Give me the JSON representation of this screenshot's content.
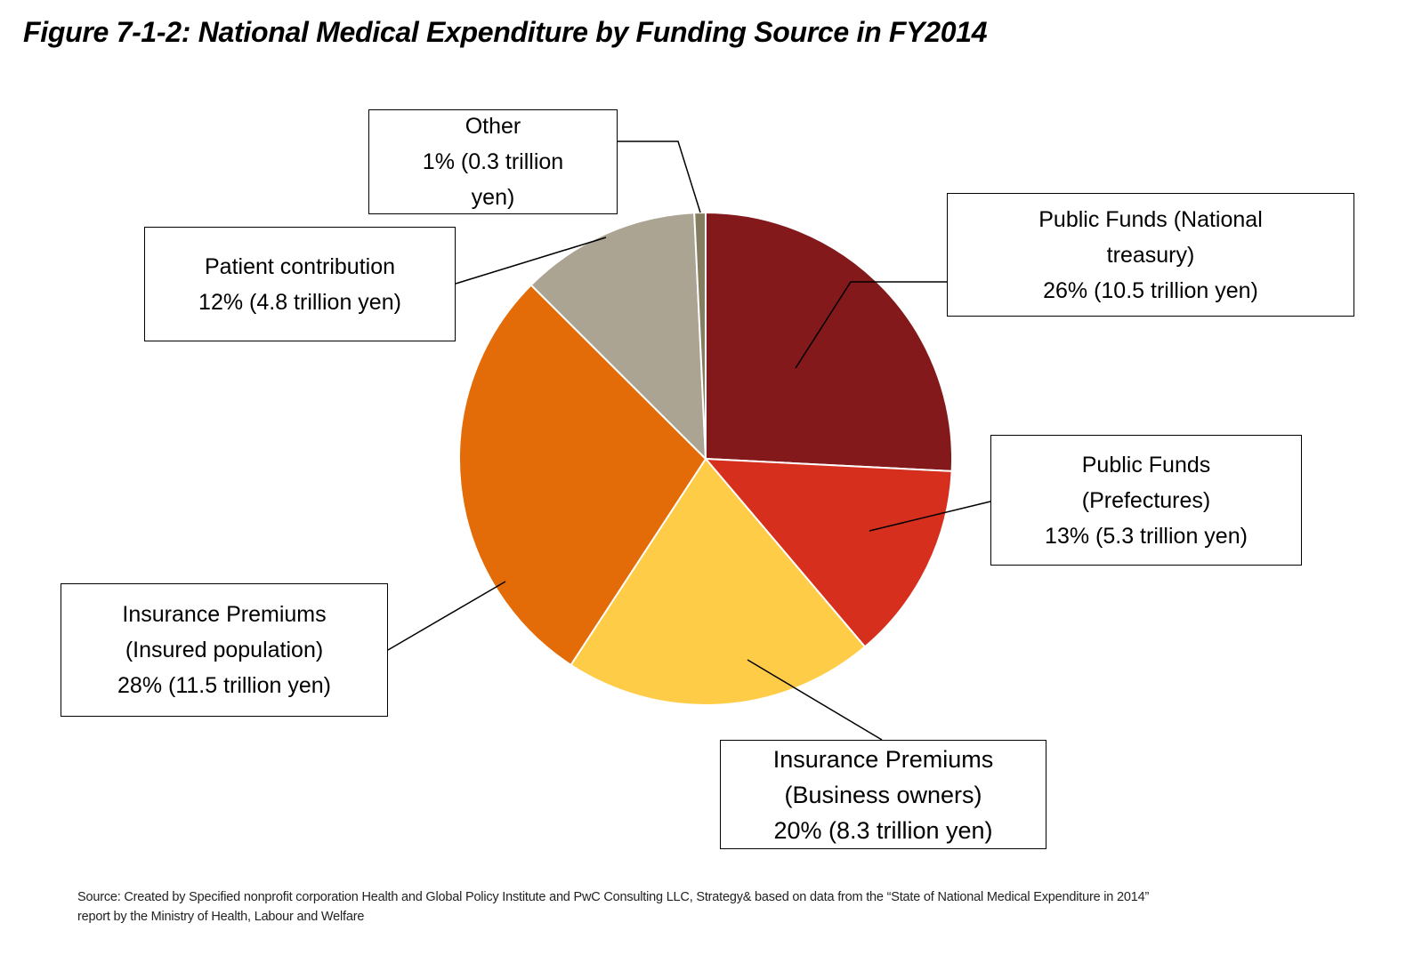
{
  "chart_data": {
    "type": "pie",
    "title": "Figure 7-1-2: National Medical Expenditure by Funding Source in FY2014",
    "unit": "trillion yen",
    "slices": [
      {
        "name": "Public Funds (National treasury)",
        "percent": 26,
        "value": 10.5,
        "color": "#83191B",
        "lines": [
          "Public Funds (National",
          "treasury)",
          "26% (10.5 trillion yen)"
        ]
      },
      {
        "name": "Public Funds (Prefectures)",
        "percent": 13,
        "value": 5.3,
        "color": "#D62F1E",
        "lines": [
          "Public Funds",
          "(Prefectures)",
          "13% (5.3 trillion yen)"
        ]
      },
      {
        "name": "Insurance Premiums (Business owners)",
        "percent": 20,
        "value": 8.3,
        "color": "#FFCC47",
        "lines": [
          "Insurance Premiums",
          "(Business owners)",
          "20% (8.3 trillion yen)"
        ]
      },
      {
        "name": "Insurance Premiums (Insured population)",
        "percent": 28,
        "value": 11.5,
        "color": "#E36C09",
        "lines": [
          "Insurance Premiums",
          "(Insured population)",
          "28% (11.5 trillion yen)"
        ]
      },
      {
        "name": "Patient contribution",
        "percent": 12,
        "value": 4.8,
        "color": "#ABA492",
        "lines": [
          "Patient contribution",
          "12% (4.8 trillion yen)"
        ]
      },
      {
        "name": "Other",
        "percent": 1,
        "value": 0.3,
        "color": "#857D60",
        "lines": [
          "Other",
          "1% (0.3 trillion",
          "yen)"
        ]
      }
    ],
    "start": "12 o'clock, clockwise"
  },
  "source": {
    "lines": [
      "Source: Created by Specified nonprofit corporation Health and Global Policy Institute and PwC Consulting LLC, Strategy& based on data from the “State of National Medical Expenditure in 2014”",
      "report by the Ministry of Health, Labour and Welfare"
    ]
  }
}
